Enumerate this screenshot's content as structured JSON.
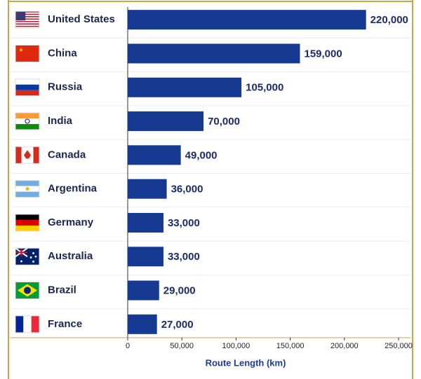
{
  "chart_data": {
    "type": "bar",
    "orientation": "horizontal",
    "categories": [
      "United States",
      "China",
      "Russia",
      "India",
      "Canada",
      "Argentina",
      "Germany",
      "Australia",
      "Brazil",
      "France"
    ],
    "values": [
      220000,
      159000,
      105000,
      70000,
      49000,
      36000,
      33000,
      33000,
      29000,
      27000
    ],
    "value_labels": [
      "220,000",
      "159,000",
      "105,000",
      "70,000",
      "49,000",
      "36,000",
      "33,000",
      "33,000",
      "29,000",
      "27,000"
    ],
    "color": "#163a92",
    "xlim": [
      0,
      250000
    ],
    "xticks": [
      0,
      {
        "value": 50000,
        "label": "50,000"
      },
      {
        "value": 100000,
        "label": "100,000"
      },
      {
        "value": 150000,
        "label": "150,000"
      },
      {
        "value": 200000,
        "label": "200,000"
      },
      {
        "value": 250000,
        "label": "250,000"
      }
    ],
    "xlabel": "Route Length (km)"
  }
}
